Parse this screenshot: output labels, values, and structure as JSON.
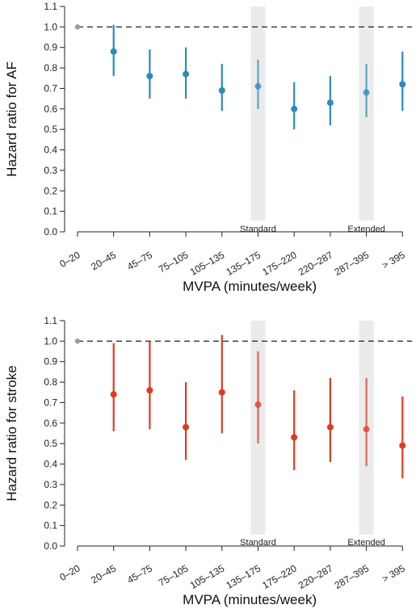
{
  "chart_data": [
    {
      "type": "scatter",
      "subtype": "point-with-error-bars",
      "title": "",
      "xlabel": "MVPA (minutes/week)",
      "ylabel": "Hazard ratio for AF",
      "ylim": [
        0.0,
        1.1
      ],
      "yticks": [
        0.0,
        0.1,
        0.2,
        0.3,
        0.4,
        0.5,
        0.6,
        0.7,
        0.8,
        0.9,
        1.0,
        1.1
      ],
      "reference_line": 1.0,
      "color": "#2a8bbd",
      "reference_color": "#999999",
      "categories": [
        "0–20",
        "20–45",
        "45–75",
        "75–105",
        "105–135",
        "135–175",
        "175–220",
        "220–287",
        "287–395",
        "> 395"
      ],
      "values": [
        1.0,
        0.88,
        0.76,
        0.77,
        0.69,
        0.71,
        0.6,
        0.63,
        0.68,
        0.72
      ],
      "lower": [
        null,
        0.76,
        0.65,
        0.65,
        0.59,
        0.6,
        0.5,
        0.52,
        0.56,
        0.59
      ],
      "upper": [
        null,
        1.01,
        0.89,
        0.9,
        0.82,
        0.84,
        0.73,
        0.76,
        0.82,
        0.88
      ],
      "highlight_bands": [
        {
          "category": "135–175",
          "label": "Standard"
        },
        {
          "category": "287–395",
          "label": "Extended"
        }
      ]
    },
    {
      "type": "scatter",
      "subtype": "point-with-error-bars",
      "title": "",
      "xlabel": "MVPA (minutes/week)",
      "ylabel": "Hazard ratio for stroke",
      "ylim": [
        0.0,
        1.1
      ],
      "yticks": [
        0.0,
        0.1,
        0.2,
        0.3,
        0.4,
        0.5,
        0.6,
        0.7,
        0.8,
        0.9,
        1.0,
        1.1
      ],
      "reference_line": 1.0,
      "color": "#e03a20",
      "reference_color": "#999999",
      "categories": [
        "0–20",
        "20–45",
        "45–75",
        "75–105",
        "105–135",
        "135–175",
        "175–220",
        "220–287",
        "287–395",
        "> 395"
      ],
      "values": [
        1.0,
        0.74,
        0.76,
        0.58,
        0.75,
        0.69,
        0.53,
        0.58,
        0.57,
        0.49
      ],
      "lower": [
        null,
        0.56,
        0.57,
        0.42,
        0.55,
        0.5,
        0.37,
        0.41,
        0.39,
        0.33
      ],
      "upper": [
        null,
        0.99,
        1.0,
        0.8,
        1.03,
        0.95,
        0.76,
        0.82,
        0.82,
        0.73
      ],
      "highlight_bands": [
        {
          "category": "135–175",
          "label": "Standard"
        },
        {
          "category": "287–395",
          "label": "Extended"
        }
      ]
    }
  ]
}
